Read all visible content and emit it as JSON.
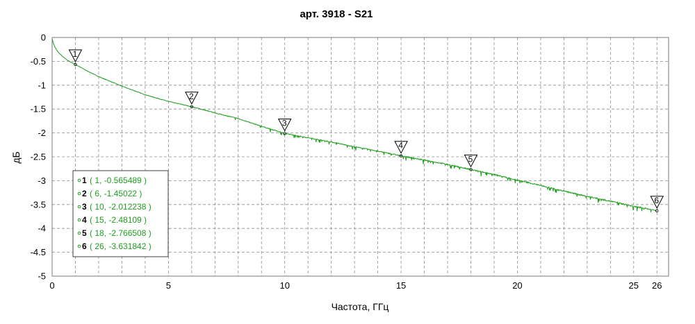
{
  "chart_data": {
    "type": "line",
    "title": "арт. 3918 - S21",
    "xlabel": "Частота, ГГц",
    "ylabel": "дБ",
    "xlim": [
      0,
      26.5
    ],
    "ylim": [
      -5,
      0
    ],
    "xticks": [
      0,
      5,
      10,
      15,
      20,
      25,
      26
    ],
    "yticks": [
      0,
      -0.5,
      -1,
      -1.5,
      -2,
      -2.5,
      -3,
      -3.5,
      -4,
      -4.5,
      -5
    ],
    "grid": true,
    "color": "#1e9e1e",
    "series": [
      {
        "x": [
          0,
          0.05,
          0.1,
          0.2,
          0.3,
          0.5,
          0.7,
          1,
          1.5,
          2,
          3,
          4,
          5,
          6,
          7,
          8,
          9,
          10,
          11,
          12,
          13,
          14,
          15,
          16,
          17,
          18,
          19,
          20,
          21,
          22,
          23,
          24,
          25,
          25.5,
          26
        ],
        "values": [
          -0.02,
          -0.12,
          -0.18,
          -0.27,
          -0.33,
          -0.42,
          -0.49,
          -0.565,
          -0.7,
          -0.82,
          -1.02,
          -1.2,
          -1.34,
          -1.45,
          -1.58,
          -1.7,
          -1.86,
          -2.01,
          -2.1,
          -2.19,
          -2.29,
          -2.38,
          -2.48,
          -2.57,
          -2.66,
          -2.77,
          -2.87,
          -2.99,
          -3.1,
          -3.22,
          -3.33,
          -3.43,
          -3.54,
          -3.58,
          -3.63
        ]
      }
    ],
    "markers": [
      {
        "id": "1",
        "x": 1,
        "y": -0.565489,
        "text": "( 1, -0.565489 )"
      },
      {
        "id": "2",
        "x": 6,
        "y": -1.45022,
        "text": "( 6, -1.45022 )"
      },
      {
        "id": "3",
        "x": 10,
        "y": -2.012238,
        "text": "( 10, -2.012238 )"
      },
      {
        "id": "4",
        "x": 15,
        "y": -2.48109,
        "text": "( 15, -2.48109 )"
      },
      {
        "id": "5",
        "x": 18,
        "y": -2.766508,
        "text": "( 18, -2.766508 )"
      },
      {
        "id": "6",
        "x": 26,
        "y": -3.631842,
        "text": "( 26, -3.631842 )"
      }
    ],
    "legend": "bottom-left"
  }
}
